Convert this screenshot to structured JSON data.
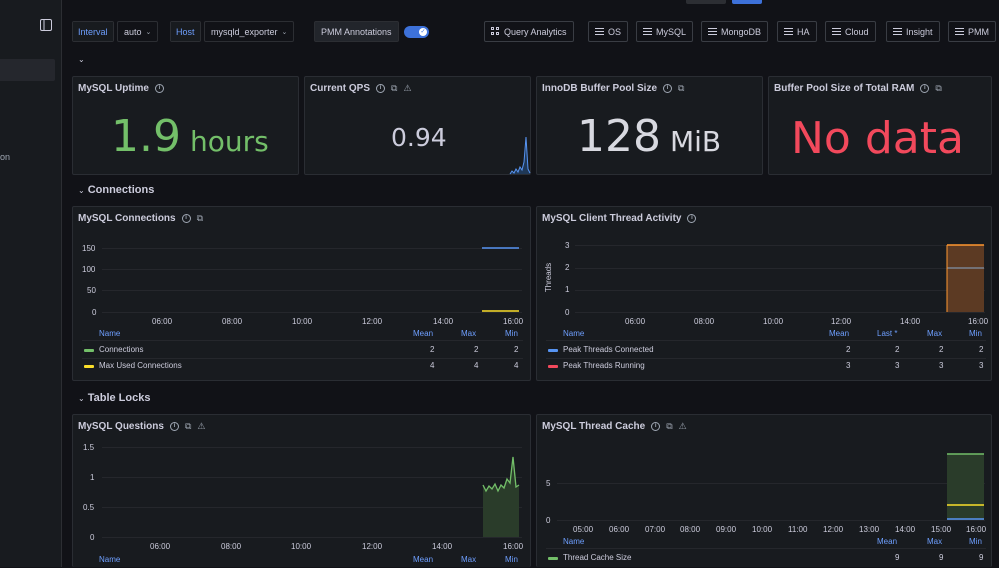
{
  "colors": {
    "blue": "#5794f2",
    "green": "#73bf69",
    "yellow": "#fade2a",
    "red": "#f2495c",
    "orange": "#ff9830",
    "bg": "#111217",
    "panel": "#181b1f"
  },
  "vars": [
    {
      "label": "Interval",
      "value": "auto"
    },
    {
      "label": "Host",
      "value": "mysqld_exporter"
    }
  ],
  "annotations": {
    "label": "PMM Annotations",
    "enabled": true
  },
  "nav": [
    "Query Analytics",
    "OS",
    "MySQL",
    "MongoDB",
    "HA",
    "Cloud",
    "Insight",
    "PMM"
  ],
  "sidebar": {
    "partial_text": "on"
  },
  "rows": [
    "Connections",
    "Table Locks"
  ],
  "stats": {
    "uptime": {
      "title": "MySQL Uptime",
      "value": "1.9",
      "unit": "hours"
    },
    "qps": {
      "title": "Current QPS",
      "value": "0.94"
    },
    "bufpool": {
      "title": "InnoDB Buffer Pool Size",
      "value": "128",
      "unit": "MiB"
    },
    "bufratio": {
      "title": "Buffer Pool Size of Total RAM",
      "value": "No data"
    }
  },
  "panels": {
    "conn": {
      "title": "MySQL Connections",
      "yticks": [
        "150",
        "100",
        "50",
        "0"
      ],
      "xticks": [
        "06:00",
        "08:00",
        "10:00",
        "12:00",
        "14:00",
        "16:00"
      ],
      "cols": [
        "Name",
        "Mean",
        "Max",
        "Min"
      ],
      "rows": [
        {
          "name": "Connections",
          "vals": [
            "2",
            "2",
            "2"
          ]
        },
        {
          "name": "Max Used Connections",
          "vals": [
            "4",
            "4",
            "4"
          ]
        }
      ]
    },
    "threads": {
      "title": "MySQL Client Thread Activity",
      "yaxis": "Threads",
      "yticks": [
        "3",
        "2",
        "1",
        "0"
      ],
      "xticks": [
        "06:00",
        "08:00",
        "10:00",
        "12:00",
        "14:00",
        "16:00"
      ],
      "cols": [
        "Name",
        "Mean",
        "Last *",
        "Max",
        "Min"
      ],
      "rows": [
        {
          "name": "Peak Threads Connected",
          "vals": [
            "2",
            "2",
            "2",
            "2"
          ]
        },
        {
          "name": "Peak Threads Running",
          "vals": [
            "3",
            "3",
            "3",
            "3"
          ]
        }
      ]
    },
    "questions": {
      "title": "MySQL Questions",
      "yticks": [
        "1.5",
        "1",
        "0.5",
        "0"
      ],
      "xticks": [
        "06:00",
        "08:00",
        "10:00",
        "12:00",
        "14:00",
        "16:00"
      ],
      "cols": [
        "Name",
        "Mean",
        "Max",
        "Min"
      ]
    },
    "cache": {
      "title": "MySQL Thread Cache",
      "yticks": [
        "5",
        "0"
      ],
      "xticks": [
        "05:00",
        "06:00",
        "07:00",
        "08:00",
        "09:00",
        "10:00",
        "11:00",
        "12:00",
        "13:00",
        "14:00",
        "15:00",
        "16:00"
      ],
      "cols": [
        "Name",
        "Mean",
        "Max",
        "Min"
      ],
      "rows": [
        {
          "name": "Thread Cache Size",
          "vals": [
            "9",
            "9",
            "9"
          ]
        }
      ]
    }
  }
}
